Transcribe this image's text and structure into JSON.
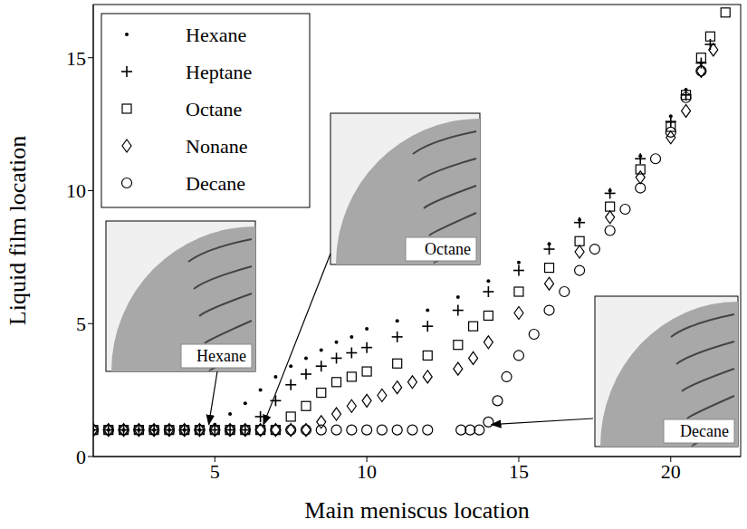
{
  "chart_data": {
    "type": "scatter",
    "x_label": "Main meniscus location",
    "y_label": "Liquid film location",
    "xlim": [
      1,
      22.3
    ],
    "xticks": [
      5,
      10,
      15,
      20
    ],
    "ylim": [
      0,
      17
    ],
    "yticks": [
      0,
      5,
      10,
      15
    ],
    "legend": "upper left",
    "grid": false,
    "series": [
      {
        "name": "Hexane",
        "color": "#000000",
        "marker": "dot",
        "x": [
          1,
          1.5,
          2,
          2.5,
          3,
          3.5,
          4,
          4.5,
          5,
          5.5,
          6,
          6.5,
          7,
          7.5,
          8,
          8.5,
          9,
          9.5,
          10,
          11,
          12,
          13,
          14,
          15,
          16,
          17,
          18,
          19,
          20,
          20.5,
          21
        ],
        "values": [
          1,
          1,
          1,
          1,
          1,
          1,
          1,
          1,
          1.2,
          1.6,
          2,
          2.5,
          3,
          3.4,
          3.7,
          4,
          4.3,
          4.5,
          4.8,
          5.1,
          5.5,
          6,
          6.6,
          7.3,
          8,
          8.9,
          10,
          11.3,
          12.8,
          13.8,
          14.8
        ]
      },
      {
        "name": "Heptane",
        "color": "#000000",
        "marker": "cross",
        "x": [
          1,
          1.5,
          2,
          2.5,
          3,
          3.5,
          4,
          4.5,
          5,
          5.5,
          6,
          6.5,
          7,
          7.5,
          8,
          8.5,
          9,
          9.5,
          10,
          11,
          12,
          13,
          14,
          15,
          16,
          17,
          18,
          19,
          20,
          20.5,
          21,
          21.3
        ],
        "values": [
          1,
          1,
          1,
          1,
          1,
          1,
          1,
          1,
          1,
          1,
          1,
          1.5,
          2.1,
          2.7,
          3.1,
          3.4,
          3.7,
          3.9,
          4.1,
          4.5,
          4.9,
          5.5,
          6.2,
          7,
          7.8,
          8.8,
          9.9,
          11.2,
          12.6,
          13.6,
          14.8,
          15.5
        ]
      },
      {
        "name": "Octane",
        "color": "#000000",
        "marker": "square",
        "x": [
          1,
          1.5,
          2,
          2.5,
          3,
          3.5,
          4,
          4.5,
          5,
          5.5,
          6,
          6.5,
          7,
          7.5,
          8,
          8.5,
          9,
          9.5,
          10,
          11,
          12,
          13,
          13.5,
          14,
          15,
          16,
          17,
          18,
          19,
          20,
          20.5,
          21,
          21.3,
          21.8
        ],
        "values": [
          1,
          1,
          1,
          1,
          1,
          1,
          1,
          1,
          1,
          1,
          1,
          1,
          1,
          1.5,
          1.9,
          2.4,
          2.8,
          3,
          3.2,
          3.5,
          3.8,
          4.2,
          4.9,
          5.3,
          6.2,
          7.1,
          8.1,
          9.4,
          10.8,
          12.4,
          13.6,
          15,
          15.8,
          16.7
        ]
      },
      {
        "name": "Nonane",
        "color": "#000000",
        "marker": "diamond",
        "x": [
          1,
          1.5,
          2,
          2.5,
          3,
          3.5,
          4,
          4.5,
          5,
          5.5,
          6,
          6.5,
          7,
          7.5,
          8,
          8.5,
          9,
          9.5,
          10,
          10.5,
          11,
          11.5,
          12,
          13,
          13.5,
          14,
          15,
          16,
          17,
          18,
          19,
          20,
          20.5,
          21,
          21.4
        ],
        "values": [
          1,
          1,
          1,
          1,
          1,
          1,
          1,
          1,
          1,
          1,
          1,
          1,
          1,
          1,
          1,
          1.3,
          1.6,
          1.9,
          2.1,
          2.3,
          2.6,
          2.8,
          3,
          3.3,
          3.7,
          4.3,
          5.4,
          6.5,
          7.7,
          9,
          10.5,
          12,
          13,
          14.5,
          15.3
        ]
      },
      {
        "name": "Decane",
        "color": "#000000",
        "marker": "circle",
        "x": [
          1,
          1.5,
          2,
          2.5,
          3,
          3.5,
          4,
          4.5,
          5,
          5.5,
          6,
          6.5,
          7,
          7.5,
          8,
          8.5,
          9,
          9.5,
          10,
          10.5,
          11,
          11.5,
          12,
          13.1,
          13.4,
          13.7,
          14,
          14.3,
          14.6,
          15,
          15.5,
          16,
          16.5,
          17,
          17.5,
          18,
          18.5,
          19,
          19.5,
          20,
          20.5,
          21
        ],
        "values": [
          1,
          1,
          1,
          1,
          1,
          1,
          1,
          1,
          1,
          1,
          1,
          1,
          1,
          1,
          1,
          1,
          1,
          1,
          1,
          1,
          1,
          1,
          1,
          1,
          1,
          1,
          1.3,
          2.1,
          3,
          3.8,
          4.6,
          5.5,
          6.2,
          7,
          7.8,
          8.5,
          9.3,
          10.1,
          11.2,
          12.2,
          13.5,
          14.5
        ]
      }
    ],
    "annotations": [
      {
        "text": "Hexane",
        "point": [
          4.8,
          1
        ]
      },
      {
        "text": "Octane",
        "point": [
          6.6,
          1
        ]
      },
      {
        "text": "Decane",
        "point": [
          14.1,
          1
        ]
      }
    ]
  }
}
